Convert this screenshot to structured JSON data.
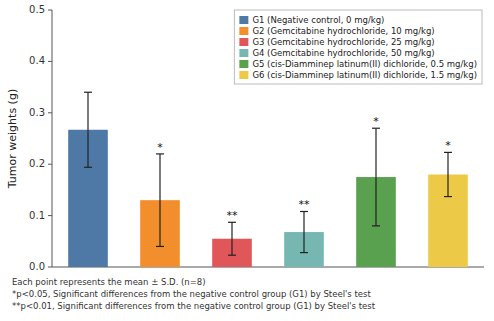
{
  "chart_data": {
    "type": "bar",
    "categories": [
      "G1 (Negative control, 0 mg/kg)",
      "G2 (Gemcitabine hydrochloride, 10 mg/kg)",
      "G3 (Gemcitabine hydrochloride, 25 mg/kg)",
      "G4 (Gemcitabine hydrochloride, 50 mg/kg)",
      "G5 (cis-Diamminep latinum(II) dichloride, 0.5 mg/kg)",
      "G6 (cis-Diamminep latinum(II) dichloride, 1.5 mg/kg)"
    ],
    "values": [
      0.267,
      0.13,
      0.055,
      0.068,
      0.175,
      0.18
    ],
    "errors": [
      0.073,
      0.09,
      0.032,
      0.04,
      0.095,
      0.043
    ],
    "y_label": "Tumor weights (g)",
    "ylim": [
      0,
      0.5
    ],
    "yticks": [
      {
        "value": 0,
        "label": "0.0"
      },
      0.1,
      0.2,
      0.3,
      0.4,
      0.5
    ],
    "annotations": [
      {
        "index": 1,
        "text": "*"
      },
      {
        "index": 2,
        "text": "**"
      },
      {
        "index": 3,
        "text": "**"
      },
      {
        "index": 4,
        "text": "*"
      },
      {
        "index": 5,
        "text": "*"
      }
    ],
    "footnotes": [
      "Each point represents the mean ± S.D. (n=8)",
      "*p<0.05, Significant differences from the negative control group (G1) by Steel's test",
      "**p<0.01, Significant differences from the negative control group (G1) by Steel's test"
    ],
    "legend": "upper right",
    "tick_labels": "y"
  }
}
